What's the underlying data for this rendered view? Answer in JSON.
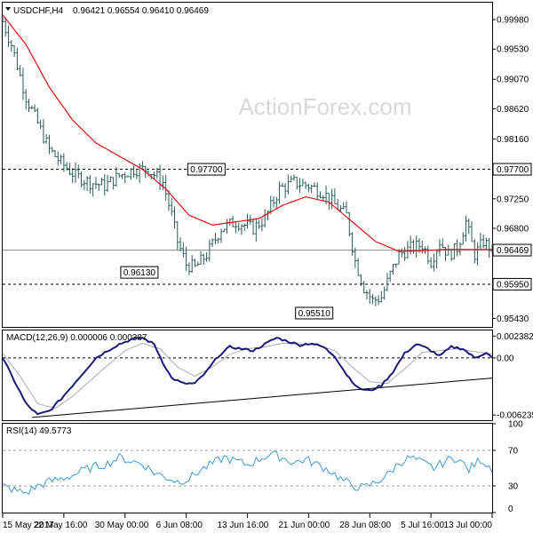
{
  "header": {
    "symbol": "USDCHF,H4",
    "ohlc": "0.96421 0.96554 0.96410 0.96469"
  },
  "watermark": "ActionForex.com",
  "colors": {
    "price_bar": "#2b5a5a",
    "ma": "#e01010",
    "macd": "#1a1a7a",
    "signal": "#aaaaaa",
    "rsi": "#3a9ad9",
    "grid": "#000000",
    "label_bg": "#ffffff"
  },
  "chart_data": [
    {
      "type": "candlestick",
      "title": "USDCHF,H4",
      "x_ticks": [
        "15 May 2017",
        "22 May 16:00",
        "30 May 00:00",
        "6 Jun 08:00",
        "13 Jun 16:00",
        "21 Jun 00:00",
        "28 Jun 08:00",
        "5 Jul 16:00",
        "13 Jul 00:00"
      ],
      "ylim": [
        0.953,
        1.0025
      ],
      "y_ticks": [
        "0.99980",
        "0.99530",
        "0.99070",
        "0.98620",
        "0.98160",
        "0.97700",
        "0.97250",
        "0.96800",
        "0.96469",
        "0.95950",
        "0.95430"
      ],
      "levels": [
        0.977,
        0.9595
      ],
      "annotations": [
        "0.97700",
        "0.96130",
        "0.95510"
      ],
      "current_price": "0.96469",
      "close_path": [
        [
          0,
          0.9995
        ],
        [
          3,
          0.996
        ],
        [
          8,
          0.988
        ],
        [
          12,
          0.984
        ],
        [
          16,
          0.98
        ],
        [
          20,
          0.978
        ],
        [
          25,
          0.976
        ],
        [
          30,
          0.975
        ],
        [
          35,
          0.9745
        ],
        [
          40,
          0.976
        ],
        [
          45,
          0.977
        ],
        [
          50,
          0.977
        ],
        [
          55,
          0.975
        ],
        [
          58,
          0.97
        ],
        [
          60,
          0.966
        ],
        [
          63,
          0.9625
        ],
        [
          66,
          0.962
        ],
        [
          70,
          0.964
        ],
        [
          75,
          0.968
        ],
        [
          80,
          0.969
        ],
        [
          86,
          0.968
        ],
        [
          90,
          0.9695
        ],
        [
          95,
          0.974
        ],
        [
          100,
          0.975
        ],
        [
          105,
          0.9745
        ],
        [
          110,
          0.9735
        ],
        [
          113,
          0.972
        ],
        [
          118,
          0.97
        ],
        [
          121,
          0.963
        ],
        [
          124,
          0.959
        ],
        [
          127,
          0.957
        ],
        [
          130,
          0.9575
        ],
        [
          133,
          0.961
        ],
        [
          136,
          0.964
        ],
        [
          140,
          0.965
        ],
        [
          144,
          0.9655
        ],
        [
          147,
          0.963
        ],
        [
          150,
          0.966
        ],
        [
          153,
          0.964
        ],
        [
          156,
          0.965
        ],
        [
          159,
          0.969
        ],
        [
          162,
          0.964
        ],
        [
          165,
          0.966
        ],
        [
          168,
          0.9647
        ]
      ],
      "ma_path": [
        [
          0,
          1.0005
        ],
        [
          8,
          0.996
        ],
        [
          16,
          0.9895
        ],
        [
          24,
          0.9845
        ],
        [
          32,
          0.981
        ],
        [
          40,
          0.979
        ],
        [
          48,
          0.977
        ],
        [
          56,
          0.974
        ],
        [
          64,
          0.97
        ],
        [
          72,
          0.9685
        ],
        [
          80,
          0.969
        ],
        [
          88,
          0.9695
        ],
        [
          96,
          0.9715
        ],
        [
          104,
          0.9728
        ],
        [
          112,
          0.972
        ],
        [
          120,
          0.969
        ],
        [
          128,
          0.966
        ],
        [
          136,
          0.9645
        ],
        [
          144,
          0.9646
        ],
        [
          152,
          0.9648
        ],
        [
          160,
          0.9648
        ],
        [
          168,
          0.9648
        ]
      ],
      "bar_count": 168
    },
    {
      "type": "line",
      "title": "MACD(12,26,9) 0.000006 0.000387",
      "ylim": [
        -0.0068,
        0.003
      ],
      "y_ticks": [
        "0.002382",
        "0.00",
        "-0.006235"
      ],
      "macd_path": [
        [
          0,
          0.0
        ],
        [
          4,
          -0.0025
        ],
        [
          8,
          -0.005
        ],
        [
          12,
          -0.0062
        ],
        [
          16,
          -0.0058
        ],
        [
          20,
          -0.0045
        ],
        [
          24,
          -0.003
        ],
        [
          28,
          -0.0015
        ],
        [
          32,
          0.0
        ],
        [
          36,
          0.0008
        ],
        [
          40,
          0.0015
        ],
        [
          44,
          0.002
        ],
        [
          48,
          0.0022
        ],
        [
          52,
          0.0015
        ],
        [
          55,
          -0.0005
        ],
        [
          58,
          -0.0022
        ],
        [
          62,
          -0.0028
        ],
        [
          66,
          -0.0028
        ],
        [
          70,
          -0.0015
        ],
        [
          74,
          0.0002
        ],
        [
          78,
          0.0012
        ],
        [
          82,
          0.001
        ],
        [
          86,
          0.0008
        ],
        [
          90,
          0.0015
        ],
        [
          94,
          0.0022
        ],
        [
          98,
          0.0018
        ],
        [
          102,
          0.0014
        ],
        [
          106,
          0.0016
        ],
        [
          110,
          0.0012
        ],
        [
          114,
          0.0002
        ],
        [
          118,
          -0.0018
        ],
        [
          122,
          -0.0033
        ],
        [
          126,
          -0.0036
        ],
        [
          130,
          -0.003
        ],
        [
          134,
          -0.0015
        ],
        [
          138,
          0.0005
        ],
        [
          142,
          0.0015
        ],
        [
          146,
          0.001
        ],
        [
          150,
          0.0002
        ],
        [
          154,
          0.0012
        ],
        [
          158,
          0.001
        ],
        [
          162,
          0.0
        ],
        [
          166,
          0.0006
        ],
        [
          168,
          0.0
        ]
      ],
      "signal_path": [
        [
          0,
          0.0005
        ],
        [
          6,
          -0.002
        ],
        [
          12,
          -0.005
        ],
        [
          18,
          -0.0055
        ],
        [
          24,
          -0.0042
        ],
        [
          30,
          -0.0025
        ],
        [
          36,
          -0.0008
        ],
        [
          42,
          0.0008
        ],
        [
          48,
          0.0016
        ],
        [
          54,
          0.001
        ],
        [
          60,
          -0.001
        ],
        [
          66,
          -0.002
        ],
        [
          72,
          -0.001
        ],
        [
          78,
          0.0004
        ],
        [
          84,
          0.001
        ],
        [
          90,
          0.0012
        ],
        [
          96,
          0.0016
        ],
        [
          102,
          0.0015
        ],
        [
          108,
          0.0014
        ],
        [
          114,
          0.0008
        ],
        [
          120,
          -0.001
        ],
        [
          126,
          -0.0026
        ],
        [
          132,
          -0.0028
        ],
        [
          138,
          -0.0012
        ],
        [
          144,
          0.0006
        ],
        [
          150,
          0.0008
        ],
        [
          156,
          0.001
        ],
        [
          162,
          0.0007
        ],
        [
          168,
          0.0004
        ]
      ],
      "trendline": [
        [
          10,
          -0.0065
        ],
        [
          168,
          -0.0022
        ]
      ]
    },
    {
      "type": "line",
      "title": "RSI(14) 49.5773",
      "ylim": [
        0,
        100
      ],
      "y_ticks": [
        "100",
        "70",
        "30",
        "0"
      ],
      "rsi_path": [
        [
          0,
          30
        ],
        [
          4,
          25
        ],
        [
          8,
          22
        ],
        [
          12,
          30
        ],
        [
          16,
          35
        ],
        [
          20,
          38
        ],
        [
          24,
          42
        ],
        [
          28,
          48
        ],
        [
          32,
          52
        ],
        [
          36,
          55
        ],
        [
          40,
          62
        ],
        [
          44,
          58
        ],
        [
          48,
          55
        ],
        [
          52,
          45
        ],
        [
          56,
          40
        ],
        [
          60,
          35
        ],
        [
          64,
          38
        ],
        [
          68,
          48
        ],
        [
          72,
          55
        ],
        [
          76,
          62
        ],
        [
          80,
          58
        ],
        [
          84,
          54
        ],
        [
          88,
          60
        ],
        [
          92,
          66
        ],
        [
          96,
          62
        ],
        [
          100,
          56
        ],
        [
          104,
          60
        ],
        [
          108,
          54
        ],
        [
          112,
          48
        ],
        [
          116,
          38
        ],
        [
          120,
          30
        ],
        [
          124,
          28
        ],
        [
          128,
          34
        ],
        [
          132,
          42
        ],
        [
          136,
          56
        ],
        [
          140,
          62
        ],
        [
          144,
          56
        ],
        [
          148,
          50
        ],
        [
          152,
          58
        ],
        [
          156,
          62
        ],
        [
          160,
          48
        ],
        [
          164,
          60
        ],
        [
          168,
          50
        ]
      ]
    }
  ]
}
